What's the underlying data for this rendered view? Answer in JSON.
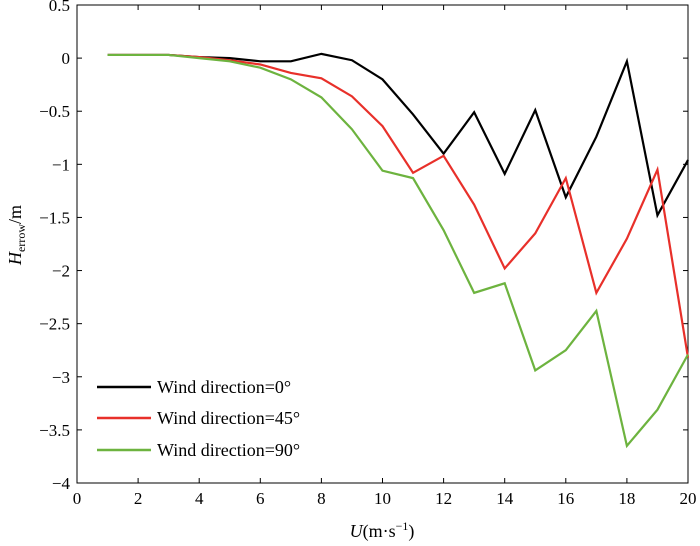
{
  "chart_data": {
    "type": "line",
    "title": "",
    "xlabel": {
      "var": "U",
      "unit": "(m·s",
      "exp": "−1",
      "close": ")"
    },
    "ylabel": {
      "var": "H",
      "sub": "errow",
      "unit": "/m"
    },
    "xlim": [
      0,
      20
    ],
    "ylim": [
      -4,
      0.5
    ],
    "xticks": [
      0,
      2,
      4,
      6,
      8,
      10,
      12,
      14,
      16,
      18,
      20
    ],
    "yticks": [
      0.5,
      0,
      -0.5,
      -1,
      -1.5,
      -2,
      -2.5,
      -3,
      -3.5,
      -4
    ],
    "xtick_labels": [
      "0",
      "2",
      "4",
      "6",
      "8",
      "10",
      "12",
      "14",
      "16",
      "18",
      "20"
    ],
    "ytick_labels": [
      "0.5",
      "0",
      "−0.5",
      "−1",
      "−1.5",
      "−2",
      "−2.5",
      "−3",
      "−3.5",
      "−4"
    ],
    "grid": false,
    "legend_position": "bottom-left",
    "x": [
      1,
      2,
      3,
      4,
      5,
      6,
      7,
      8,
      9,
      10,
      11,
      12,
      13,
      14,
      15,
      16,
      17,
      18,
      19,
      20
    ],
    "series": [
      {
        "name": "Wind direction=0°",
        "color": "#000000",
        "values": [
          0.03,
          0.03,
          0.03,
          0.01,
          0.0,
          -0.03,
          -0.03,
          0.04,
          -0.02,
          -0.2,
          -0.53,
          -0.9,
          -0.51,
          -1.09,
          -0.49,
          -1.31,
          -0.74,
          -0.03,
          -1.48,
          -0.96
        ]
      },
      {
        "name": "Wind direction=45°",
        "color": "#e8302a",
        "values": [
          0.03,
          0.03,
          0.03,
          0.01,
          -0.02,
          -0.06,
          -0.14,
          -0.19,
          -0.36,
          -0.64,
          -1.08,
          -0.92,
          -1.38,
          -1.98,
          -1.65,
          -1.13,
          -2.21,
          -1.7,
          -1.05,
          -2.82
        ]
      },
      {
        "name": "Wind direction=90°",
        "color": "#6db33f",
        "values": [
          0.03,
          0.03,
          0.03,
          0.0,
          -0.03,
          -0.09,
          -0.2,
          -0.37,
          -0.67,
          -1.06,
          -1.13,
          -1.62,
          -2.21,
          -2.12,
          -2.94,
          -2.75,
          -2.38,
          -3.65,
          -3.31,
          -2.79
        ]
      }
    ]
  }
}
